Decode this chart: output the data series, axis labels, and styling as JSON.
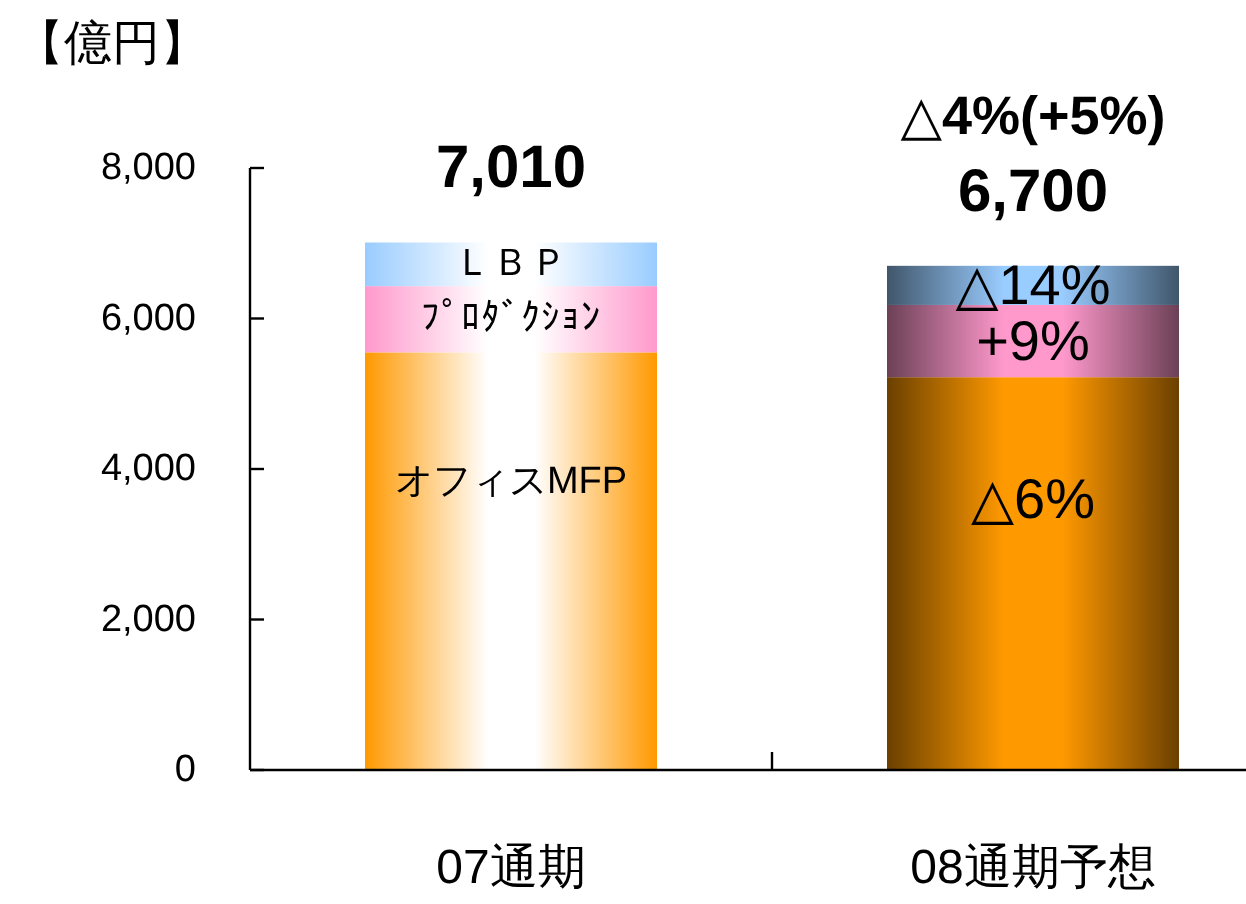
{
  "chart_data": {
    "type": "bar",
    "stacked": true,
    "ylabel": "【億円】",
    "categories": [
      "07通期",
      "08通期予想"
    ],
    "series": [
      {
        "name": "オフィスMFP",
        "color": "#ff9900",
        "values": [
          5550,
          5220
        ]
      },
      {
        "name": "ﾌﾟﾛﾀﾞｸｼｮﾝ",
        "color": "#ff99cc",
        "values": [
          880,
          960
        ]
      },
      {
        "name": "ＬＢＰ",
        "color": "#99ccff",
        "values": [
          580,
          520
        ]
      }
    ],
    "totals": [
      "7,010",
      "6,700"
    ],
    "ylim": [
      0,
      8000
    ],
    "yticks": [
      0,
      {
        "value": 2000,
        "label": "2,000"
      },
      {
        "value": 4000,
        "label": "4,000"
      },
      {
        "value": 6000,
        "label": "6,000"
      },
      {
        "value": 8000,
        "label": "8,000"
      }
    ],
    "annotations": [
      "△4%(+5%)",
      {
        "text": "△14%",
        "x": "08通期予想",
        "y": 6700
      },
      {
        "text": "+9%",
        "x": "08通期予想",
        "y": 6180
      },
      {
        "text": "△6%",
        "x": "08通期予想",
        "y": 5220
      }
    ],
    "legend": false,
    "grid": false
  }
}
